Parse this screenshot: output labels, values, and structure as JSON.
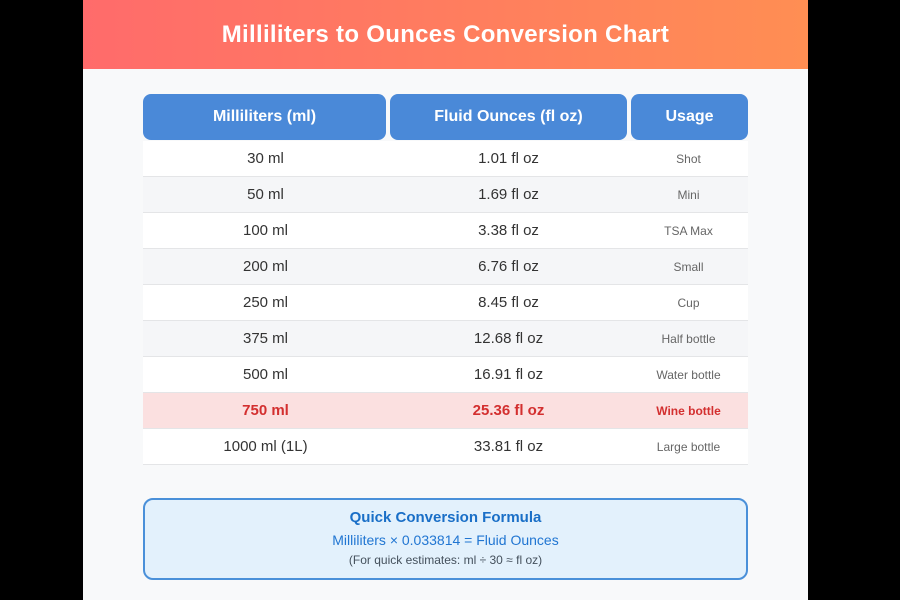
{
  "banner": {
    "title": "Milliliters to Ounces Conversion Chart"
  },
  "table": {
    "headers": [
      "Milliliters (ml)",
      "Fluid Ounces (fl oz)",
      "Usage"
    ],
    "rows": [
      {
        "ml": "30 ml",
        "floz": "1.01 fl oz",
        "usage": "Shot",
        "highlight": false
      },
      {
        "ml": "50 ml",
        "floz": "1.69 fl oz",
        "usage": "Mini",
        "highlight": false
      },
      {
        "ml": "100 ml",
        "floz": "3.38 fl oz",
        "usage": "TSA Max",
        "highlight": false
      },
      {
        "ml": "200 ml",
        "floz": "6.76 fl oz",
        "usage": "Small",
        "highlight": false
      },
      {
        "ml": "250 ml",
        "floz": "8.45 fl oz",
        "usage": "Cup",
        "highlight": false
      },
      {
        "ml": "375 ml",
        "floz": "12.68 fl oz",
        "usage": "Half bottle",
        "highlight": false
      },
      {
        "ml": "500 ml",
        "floz": "16.91 fl oz",
        "usage": "Water bottle",
        "highlight": false
      },
      {
        "ml": "750 ml",
        "floz": "25.36 fl oz",
        "usage": "Wine bottle",
        "highlight": true
      },
      {
        "ml": "1000 ml (1L)",
        "floz": "33.81 fl oz",
        "usage": "Large bottle",
        "highlight": false
      }
    ]
  },
  "formula": {
    "title": "Quick Conversion Formula",
    "equation": "Milliliters × 0.033814 = Fluid Ounces",
    "note": "(For quick estimates: ml ÷ 30 ≈ fl oz)"
  },
  "colors": {
    "banner_gradient_start": "#ff6b6b",
    "banner_gradient_end": "#ff8e53",
    "header_blue": "#4a89d8",
    "highlight_row_bg": "#fbe0e0",
    "highlight_text": "#d32f2f",
    "formula_box_bg": "#e3f1fc",
    "formula_border": "#4a90d9"
  },
  "chart_data": {
    "type": "table",
    "title": "Milliliters to Ounces Conversion Chart",
    "columns": [
      "Milliliters (ml)",
      "Fluid Ounces (fl oz)",
      "Usage"
    ],
    "rows": [
      [
        "30 ml",
        "1.01 fl oz",
        "Shot"
      ],
      [
        "50 ml",
        "1.69 fl oz",
        "Mini"
      ],
      [
        "100 ml",
        "3.38 fl oz",
        "TSA Max"
      ],
      [
        "200 ml",
        "6.76 fl oz",
        "Small"
      ],
      [
        "250 ml",
        "8.45 fl oz",
        "Cup"
      ],
      [
        "375 ml",
        "12.68 fl oz",
        "Half bottle"
      ],
      [
        "500 ml",
        "16.91 fl oz",
        "Water bottle"
      ],
      [
        "750 ml",
        "25.36 fl oz",
        "Wine bottle"
      ],
      [
        "1000 ml (1L)",
        "33.81 fl oz",
        "Large bottle"
      ]
    ],
    "highlighted_row": "750 ml",
    "conversion_factor": 0.033814,
    "footer_formula": "Milliliters × 0.033814 = Fluid Ounces",
    "footer_note": "(For quick estimates: ml ÷ 30 ≈ fl oz)"
  }
}
